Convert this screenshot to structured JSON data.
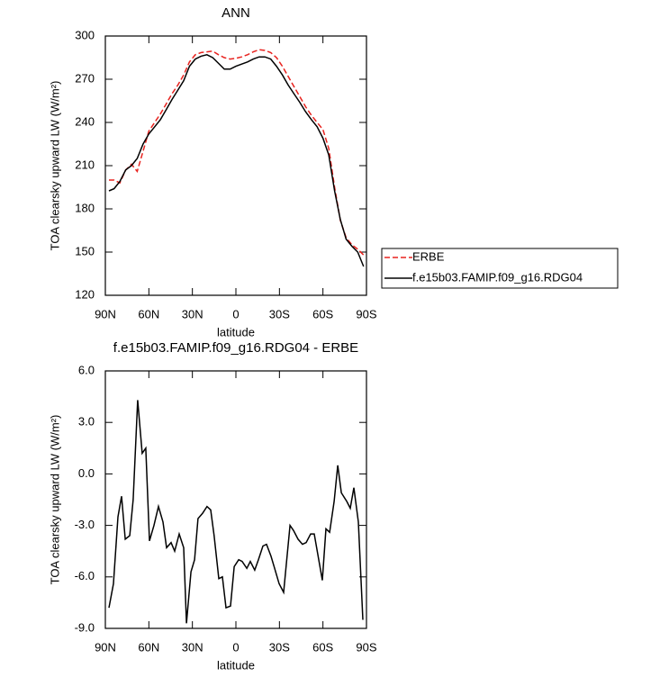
{
  "chart_data": [
    {
      "type": "line",
      "title": "ANN",
      "xlabel": "latitude",
      "ylabel": "TOA clearsky upward LW (W/m²)",
      "x": [
        87.5,
        84,
        80,
        76,
        72,
        68,
        64,
        60,
        56,
        52,
        48,
        44,
        40,
        36,
        32,
        28,
        24,
        20,
        16,
        12,
        8,
        4,
        0,
        -4,
        -8,
        -12,
        -16,
        -20,
        -24,
        -28,
        -32,
        -36,
        -40,
        -44,
        -48,
        -52,
        -56,
        -60,
        -64,
        -68,
        -72,
        -76,
        -80,
        -84,
        -88
      ],
      "series": [
        {
          "name": "ERBE",
          "color": "#e8231f",
          "dash": true,
          "values": [
            200,
            200,
            198,
            207,
            211,
            206,
            220,
            234,
            240,
            246,
            253,
            260,
            266,
            273,
            282,
            287,
            288.5,
            289,
            289.5,
            287,
            285,
            284,
            284.5,
            285.5,
            287,
            289,
            290.5,
            290,
            288.5,
            285,
            279,
            272,
            265,
            258,
            251,
            245,
            240,
            235,
            222,
            195,
            172,
            160,
            155,
            152,
            148
          ]
        },
        {
          "name": "f.e15b03.FAMIP.f09_g16.RDG04",
          "color": "#000000",
          "dash": false,
          "values": [
            192.5,
            194,
            199,
            207,
            210,
            215,
            225,
            232,
            237,
            242,
            249,
            256,
            262.5,
            269,
            279,
            284,
            286,
            287,
            285,
            281,
            277,
            277,
            279,
            280.5,
            282,
            284,
            285.5,
            285.5,
            284,
            279,
            273,
            266,
            260,
            254,
            247.5,
            242,
            237,
            229,
            217.5,
            192.5,
            172.5,
            159,
            154,
            150,
            140
          ]
        }
      ],
      "xlim": [
        90,
        -90
      ],
      "xticks": [
        {
          "value": 90,
          "label": "90N"
        },
        {
          "value": 60,
          "label": "60N"
        },
        {
          "value": 30,
          "label": "30N"
        },
        0,
        {
          "value": -30,
          "label": "30S"
        },
        {
          "value": -60,
          "label": "60S"
        },
        {
          "value": -90,
          "label": "90S"
        }
      ],
      "ylim": [
        120,
        300
      ],
      "yticks": [
        120,
        150,
        180,
        210,
        240,
        270,
        300
      ],
      "legend": "right"
    },
    {
      "type": "line",
      "title": "f.e15b03.FAMIP.f09_g16.RDG04 - ERBE",
      "xlabel": "latitude",
      "ylabel": "TOA clearsky upward LW (W/m²)",
      "x": [
        87.5,
        84.4,
        81.3,
        78.8,
        76.3,
        73.2,
        70.8,
        67.7,
        64.6,
        62.1,
        59.6,
        56.5,
        53.4,
        50.3,
        47.8,
        44.7,
        42.2,
        39.1,
        36.0,
        34.1,
        31.0,
        28.5,
        26.1,
        23.0,
        19.9,
        17.4,
        15.0,
        11.8,
        9.3,
        6.8,
        3.7,
        1.2,
        -1.9,
        -4.3,
        -7.5,
        -9.9,
        -13.0,
        -15.5,
        -18.6,
        -21.1,
        -24.2,
        -26.7,
        -29.8,
        -32.9,
        -37.3,
        -39.7,
        -42.8,
        -45.9,
        -48.4,
        -51.5,
        -54.0,
        -56.5,
        -59.6,
        -62.1,
        -64.6,
        -67.7,
        -70.2,
        -72.7,
        -76.4,
        -78.8,
        -81.3,
        -84.4,
        -87.5
      ],
      "color": "#000000",
      "values": [
        -7.8,
        -6.4,
        -2.5,
        -1.3,
        -3.8,
        -3.6,
        -1.5,
        4.3,
        1.2,
        1.5,
        -3.9,
        -3.0,
        -1.9,
        -2.8,
        -4.3,
        -4.0,
        -4.5,
        -3.5,
        -4.3,
        -8.7,
        -5.7,
        -5.0,
        -2.6,
        -2.3,
        -1.9,
        -2.1,
        -3.6,
        -6.1,
        -6.0,
        -7.8,
        -7.7,
        -5.4,
        -5.0,
        -5.1,
        -5.5,
        -5.1,
        -5.6,
        -5.0,
        -4.2,
        -4.1,
        -4.8,
        -5.5,
        -6.4,
        -6.9,
        -3.0,
        -3.3,
        -3.8,
        -4.1,
        -4.0,
        -3.5,
        -3.5,
        -4.7,
        -6.2,
        -3.2,
        -3.4,
        -1.6,
        0.5,
        -1.1,
        -1.6,
        -2.0,
        -0.8,
        -2.8,
        -8.5
      ],
      "xlim": [
        90,
        -90
      ],
      "xticks": [
        {
          "value": 90,
          "label": "90N"
        },
        {
          "value": 60,
          "label": "60N"
        },
        {
          "value": 30,
          "label": "30N"
        },
        0,
        {
          "value": -30,
          "label": "30S"
        },
        {
          "value": -60,
          "label": "60S"
        },
        {
          "value": -90,
          "label": "90S"
        }
      ],
      "ylim": [
        -9,
        6
      ],
      "yticks": [
        {
          "value": -9,
          "label": "-9.0"
        },
        {
          "value": -6,
          "label": "-6.0"
        },
        {
          "value": -3,
          "label": "-3.0"
        },
        {
          "value": 0,
          "label": "0.0"
        },
        {
          "value": 3,
          "label": "3.0"
        },
        {
          "value": 6,
          "label": "6.0"
        }
      ]
    }
  ]
}
